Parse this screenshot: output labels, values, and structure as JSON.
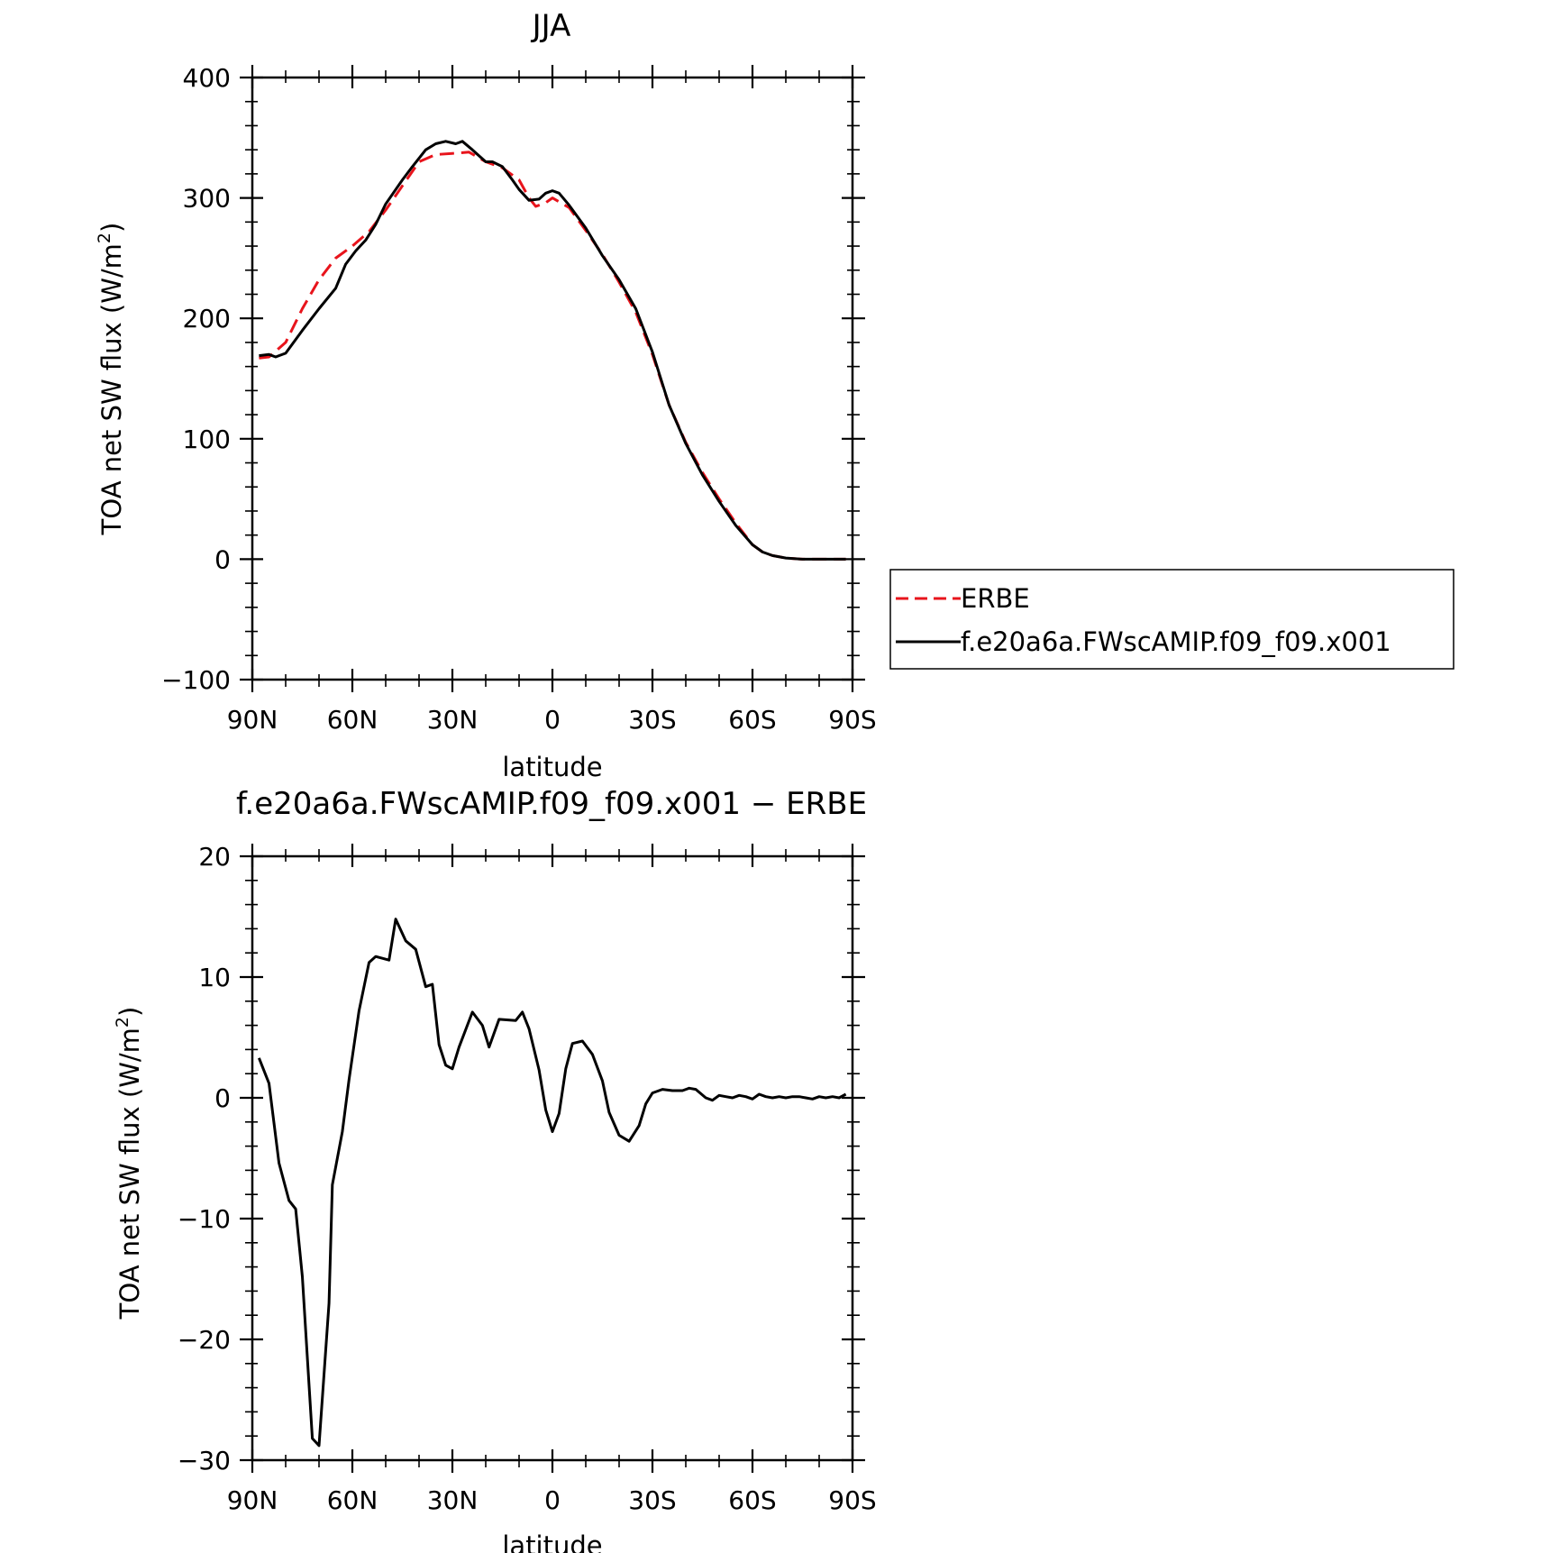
{
  "chart_data": [
    {
      "type": "line",
      "title": "JJA",
      "xlabel": "latitude",
      "ylabel": "TOA net SW flux (W/m",
      "ylabel_sup": "2",
      "ylabel_close": ")",
      "xlim": [
        90,
        -90
      ],
      "ylim": [
        -100,
        400
      ],
      "x_ticks": [
        90,
        60,
        30,
        0,
        -30,
        -60,
        -90
      ],
      "x_tick_labels": [
        "90N",
        "60N",
        "30N",
        "0",
        "30S",
        "60S",
        "90S"
      ],
      "y_ticks": [
        -100,
        0,
        100,
        200,
        300,
        400
      ],
      "y_tick_labels": [
        "−100",
        "0",
        "100",
        "200",
        "300",
        "400"
      ],
      "legend": {
        "position": "right",
        "entries": [
          "ERBE",
          "f.e20a6a.FWscAMIP.f09_f09.x001"
        ]
      },
      "series": [
        {
          "name": "ERBE",
          "color": "#e8141c",
          "dash": true,
          "x": [
            88,
            85,
            80,
            75,
            70,
            65,
            60,
            55,
            50,
            45,
            40,
            35,
            30,
            25,
            20,
            15,
            10,
            7,
            5,
            2,
            0,
            -5,
            -10,
            -15,
            -20,
            -25,
            -30,
            -35,
            -40,
            -45,
            -50,
            -55,
            -60,
            -63,
            -66,
            -70,
            -75,
            -80,
            -85,
            -88
          ],
          "y": [
            167,
            168,
            180,
            208,
            232,
            250,
            260,
            272,
            290,
            310,
            330,
            336,
            337,
            338,
            330,
            325,
            315,
            300,
            293,
            296,
            300,
            292,
            273,
            253,
            230,
            205,
            170,
            128,
            97,
            72,
            50,
            30,
            12,
            6,
            3,
            1,
            0,
            0,
            0,
            0
          ]
        },
        {
          "name": "f.e20a6a.FWscAMIP.f09_f09.x001",
          "color": "#000000",
          "dash": false,
          "x": [
            88,
            85,
            83,
            80,
            75,
            70,
            65,
            62,
            59,
            56,
            53,
            50,
            45,
            42,
            38,
            35,
            32,
            29,
            27,
            24,
            20,
            18,
            15,
            12,
            10,
            7,
            4,
            2,
            0,
            -2,
            -5,
            -10,
            -15,
            -20,
            -25,
            -30,
            -35,
            -40,
            -45,
            -50,
            -55,
            -60,
            -63,
            -66,
            -70,
            -75,
            -80,
            -85,
            -88
          ],
          "y": [
            169,
            170,
            168,
            171,
            190,
            208,
            225,
            245,
            256,
            265,
            278,
            295,
            315,
            326,
            340,
            345,
            347,
            345,
            347,
            340,
            330,
            330,
            326,
            315,
            307,
            298,
            299,
            304,
            306,
            304,
            294,
            275,
            252,
            232,
            208,
            172,
            128,
            96,
            70,
            48,
            28,
            12,
            6,
            3,
            1,
            0,
            0,
            0,
            0
          ]
        }
      ]
    },
    {
      "type": "line",
      "title": "f.e20a6a.FWscAMIP.f09_f09.x001 − ERBE",
      "xlabel": "latitude",
      "ylabel": "TOA net SW flux (W/m",
      "ylabel_sup": "2",
      "ylabel_close": ")",
      "xlim": [
        90,
        -90
      ],
      "ylim": [
        -30,
        20
      ],
      "x_ticks": [
        90,
        60,
        30,
        0,
        -30,
        -60,
        -90
      ],
      "x_tick_labels": [
        "90N",
        "60N",
        "30N",
        "0",
        "30S",
        "60S",
        "90S"
      ],
      "y_ticks": [
        -30,
        -20,
        -10,
        0,
        10,
        20
      ],
      "y_tick_labels": [
        "−30",
        "−20",
        "−10",
        "0",
        "10",
        "20"
      ],
      "series": [
        {
          "color": "#000000",
          "dash": false,
          "x": [
            88,
            85,
            82,
            79,
            77,
            75,
            72,
            70,
            67,
            66,
            63,
            61,
            58,
            55,
            53,
            49,
            47,
            44,
            41,
            38,
            36,
            34,
            32,
            30,
            28,
            24,
            21,
            19,
            16,
            11,
            9,
            7,
            4,
            2,
            0,
            -2,
            -4,
            -6,
            -9,
            -12,
            -15,
            -17,
            -20,
            -23,
            -26,
            -28,
            -30,
            -33,
            -36,
            -39,
            -41,
            -43,
            -46,
            -48,
            -50,
            -52,
            -54,
            -56,
            -58,
            -60,
            -62,
            -64,
            -66,
            -68,
            -70,
            -72,
            -74,
            -76,
            -78,
            -80,
            -82,
            -84,
            -86,
            -88
          ],
          "y": [
            3.3,
            1.2,
            -5.4,
            -8.5,
            -9.2,
            -14.8,
            -28.2,
            -28.8,
            -17,
            -7.2,
            -2.8,
            1.5,
            7.2,
            11.2,
            11.7,
            11.4,
            14.8,
            13.0,
            12.3,
            9.2,
            9.4,
            4.4,
            2.7,
            2.4,
            4.2,
            7.1,
            6.0,
            4.2,
            6.5,
            6.4,
            7.1,
            5.7,
            2.3,
            -1.0,
            -2.8,
            -1.3,
            2.4,
            4.5,
            4.7,
            3.6,
            1.4,
            -1.2,
            -3.1,
            -3.6,
            -2.3,
            -0.5,
            0.4,
            0.7,
            0.6,
            0.6,
            0.8,
            0.7,
            0.0,
            -0.2,
            0.2,
            0.1,
            0.0,
            0.2,
            0.1,
            -0.1,
            0.3,
            0.1,
            0.0,
            0.1,
            0.0,
            0.1,
            0.1,
            0.0,
            -0.1,
            0.1,
            0.0,
            0.1,
            0.0,
            0.3
          ]
        }
      ]
    }
  ]
}
